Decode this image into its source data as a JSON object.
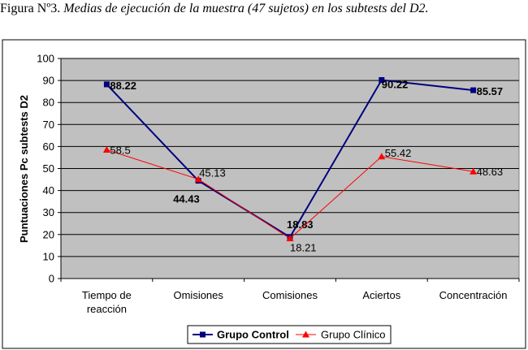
{
  "caption": {
    "prefix": "Figura Nº3.",
    "text": " Medias de ejecución de la muestra (47 sujetos) en los subtests del D2."
  },
  "chart_data": {
    "type": "line",
    "title": "",
    "ylabel": "Puntuaciones Pc subtests D2",
    "xlabel": "",
    "ylim": [
      0,
      100
    ],
    "yticks": [
      0,
      10,
      20,
      30,
      40,
      50,
      60,
      70,
      80,
      90,
      100
    ],
    "grid": true,
    "legend_position": "bottom",
    "categories": [
      [
        "Tiempo de",
        "reacción"
      ],
      [
        "Omisiones"
      ],
      [
        "Comisiones"
      ],
      [
        "Aciertos"
      ],
      [
        "Concentración"
      ]
    ],
    "series": [
      {
        "name": "Grupo Control",
        "values": [
          88.22,
          44.43,
          18.83,
          90.22,
          85.57
        ],
        "labels": [
          "88.22",
          "44.43",
          "18.83",
          "90.22",
          "85.57"
        ],
        "color": "#000080",
        "marker": "square",
        "bold_labels": true
      },
      {
        "name": "Grupo Clínico",
        "values": [
          58.5,
          45.13,
          18.21,
          55.42,
          48.63
        ],
        "labels": [
          "58.5",
          "45.13",
          "18.21",
          "55.42",
          "48.63"
        ],
        "color": "#ff0000",
        "marker": "triangle",
        "bold_labels": false
      }
    ]
  },
  "colors": {
    "plot_background": "#c0c0c0",
    "gridline": "#000000"
  }
}
